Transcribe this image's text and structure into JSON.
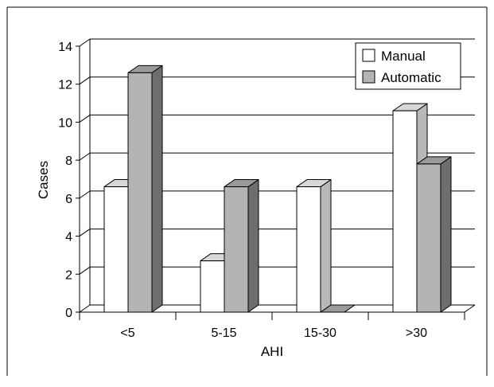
{
  "chart_data": {
    "type": "bar",
    "categories": [
      "<5",
      "5-15",
      "15-30",
      ">30"
    ],
    "series": [
      {
        "name": "Manual",
        "values": [
          6.6,
          2.7,
          6.6,
          10.6
        ],
        "color": "#ffffff"
      },
      {
        "name": "Automatic",
        "values": [
          12.6,
          6.6,
          0,
          7.8
        ],
        "color": "#b4b4b4"
      }
    ],
    "xlabel": "AHI",
    "ylabel": "Cases",
    "ylim": [
      0,
      14
    ],
    "yticks": [
      "0",
      "2",
      "4",
      "6",
      "8",
      "10",
      "12",
      "14"
    ],
    "grid": true,
    "legend_position": "top-right",
    "style": "3d"
  }
}
